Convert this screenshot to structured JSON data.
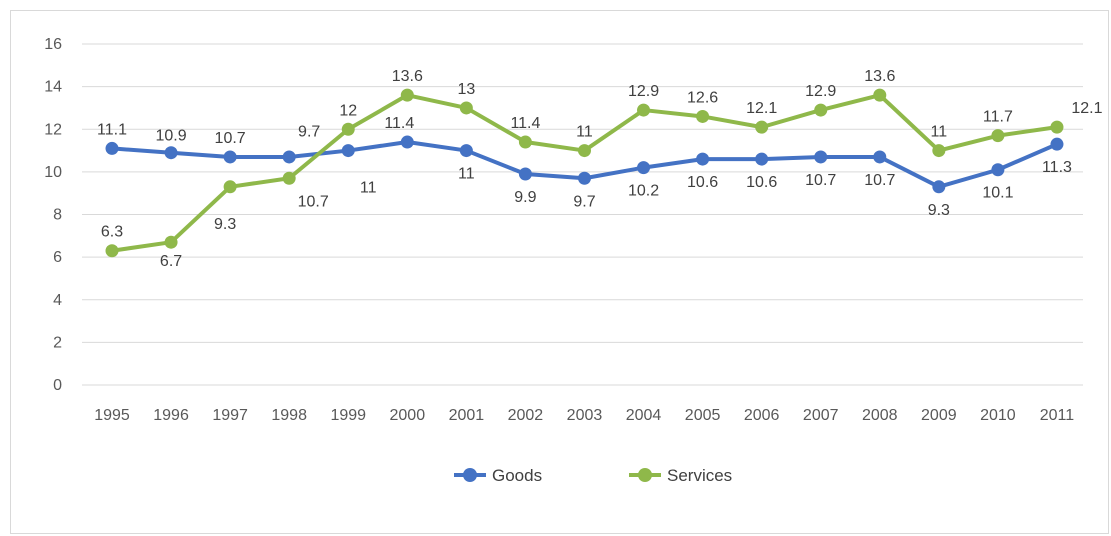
{
  "chart_data": {
    "type": "line",
    "title": "",
    "xlabel": "",
    "ylabel": "",
    "categories": [
      "1995",
      "1996",
      "1997",
      "1998",
      "1999",
      "2000",
      "2001",
      "2002",
      "2003",
      "2004",
      "2005",
      "2006",
      "2007",
      "2008",
      "2009",
      "2010",
      "2011"
    ],
    "ylim": [
      0,
      16
    ],
    "yticks": [
      "0",
      "2",
      "4",
      "6",
      "8",
      "10",
      "12",
      "14",
      "16"
    ],
    "grid": true,
    "legend": "bottom",
    "series": [
      {
        "name": "Goods",
        "color": "#4472c4",
        "values": [
          11.1,
          10.9,
          10.7,
          10.7,
          11,
          11.4,
          11,
          9.9,
          9.7,
          10.2,
          10.6,
          10.6,
          10.7,
          10.7,
          9.3,
          10.1,
          11.3
        ]
      },
      {
        "name": "Services",
        "color": "#8fb84a",
        "values": [
          6.3,
          6.7,
          9.3,
          9.7,
          12,
          13.6,
          13,
          11.4,
          11,
          12.9,
          12.6,
          12.1,
          12.9,
          13.6,
          11,
          11.7,
          12.1
        ]
      }
    ]
  }
}
